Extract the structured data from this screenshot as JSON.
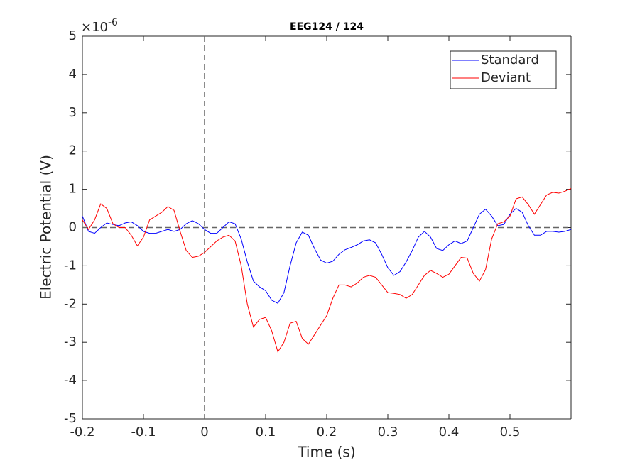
{
  "chart_data": {
    "type": "line",
    "title": "EEG124 / 124",
    "x_label": "Time (s)",
    "y_label": "Electric Potential (V)",
    "y_multiplier": {
      "base": "×10",
      "exponent": "-6"
    },
    "xlim": [
      -0.2,
      0.6
    ],
    "ylim": [
      -5,
      5
    ],
    "xticks": [
      -0.2,
      -0.1,
      0,
      0.1,
      0.2,
      0.3,
      0.4,
      0.5
    ],
    "yticks": [
      -5,
      -4,
      -3,
      -2,
      -1,
      0,
      1,
      2,
      3,
      4,
      5
    ],
    "reference_lines": {
      "x": 0,
      "y": 0
    },
    "legend": "northeast",
    "grid": false,
    "x": [
      -0.2,
      -0.19,
      -0.18,
      -0.17,
      -0.16,
      -0.15,
      -0.14,
      -0.13,
      -0.12,
      -0.11,
      -0.1,
      -0.09,
      -0.08,
      -0.07,
      -0.06,
      -0.05,
      -0.04,
      -0.03,
      -0.02,
      -0.01,
      0,
      0.01,
      0.02,
      0.03,
      0.04,
      0.05,
      0.06,
      0.07,
      0.08,
      0.09,
      0.1,
      0.11,
      0.12,
      0.13,
      0.14,
      0.15,
      0.16,
      0.17,
      0.18,
      0.19,
      0.2,
      0.21,
      0.22,
      0.23,
      0.24,
      0.25,
      0.26,
      0.27,
      0.28,
      0.29,
      0.3,
      0.31,
      0.32,
      0.33,
      0.34,
      0.35,
      0.36,
      0.37,
      0.38,
      0.39,
      0.4,
      0.41,
      0.42,
      0.43,
      0.44,
      0.45,
      0.46,
      0.47,
      0.48,
      0.49,
      0.5,
      0.51,
      0.52,
      0.53,
      0.54,
      0.55,
      0.56,
      0.57,
      0.58,
      0.59,
      0.6
    ],
    "series": [
      {
        "name": "Standard",
        "color": "#0000ff",
        "values": [
          0.3,
          -0.1,
          -0.15,
          0.0,
          0.12,
          0.08,
          0.05,
          0.12,
          0.15,
          0.05,
          -0.1,
          -0.15,
          -0.15,
          -0.1,
          -0.05,
          -0.1,
          -0.05,
          0.1,
          0.18,
          0.1,
          -0.05,
          -0.15,
          -0.15,
          0.0,
          0.15,
          0.1,
          -0.3,
          -0.9,
          -1.4,
          -1.55,
          -1.65,
          -1.9,
          -1.98,
          -1.7,
          -1.0,
          -0.4,
          -0.12,
          -0.2,
          -0.55,
          -0.85,
          -0.93,
          -0.88,
          -0.7,
          -0.58,
          -0.52,
          -0.45,
          -0.35,
          -0.32,
          -0.4,
          -0.7,
          -1.05,
          -1.25,
          -1.15,
          -0.9,
          -0.6,
          -0.25,
          -0.1,
          -0.25,
          -0.55,
          -0.6,
          -0.45,
          -0.35,
          -0.42,
          -0.35,
          0.0,
          0.35,
          0.48,
          0.3,
          0.05,
          0.08,
          0.35,
          0.5,
          0.4,
          0.05,
          -0.2,
          -0.2,
          -0.1,
          -0.1,
          -0.12,
          -0.1,
          -0.05
        ]
      },
      {
        "name": "Deviant",
        "color": "#ff0000",
        "values": [
          0.2,
          -0.05,
          0.2,
          0.62,
          0.5,
          0.1,
          0.0,
          0.0,
          -0.2,
          -0.48,
          -0.25,
          0.2,
          0.3,
          0.4,
          0.55,
          0.45,
          -0.1,
          -0.6,
          -0.78,
          -0.75,
          -0.65,
          -0.5,
          -0.35,
          -0.25,
          -0.2,
          -0.35,
          -1.0,
          -2.0,
          -2.6,
          -2.4,
          -2.35,
          -2.7,
          -3.25,
          -3.0,
          -2.5,
          -2.45,
          -2.9,
          -3.05,
          -2.8,
          -2.55,
          -2.3,
          -1.85,
          -1.5,
          -1.5,
          -1.55,
          -1.45,
          -1.3,
          -1.25,
          -1.3,
          -1.5,
          -1.7,
          -1.72,
          -1.75,
          -1.85,
          -1.75,
          -1.5,
          -1.25,
          -1.12,
          -1.2,
          -1.3,
          -1.22,
          -1.0,
          -0.78,
          -0.8,
          -1.2,
          -1.4,
          -1.1,
          -0.3,
          0.1,
          0.15,
          0.3,
          0.75,
          0.8,
          0.6,
          0.35,
          0.6,
          0.85,
          0.92,
          0.9,
          0.95,
          1.02
        ]
      }
    ]
  }
}
